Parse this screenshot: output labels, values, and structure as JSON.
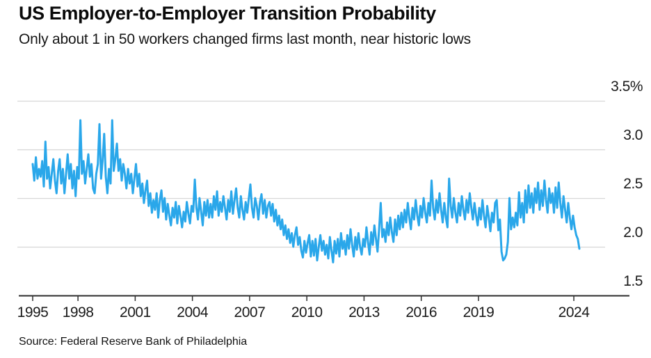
{
  "header": {
    "title": "US Employer-to-Employer Transition Probability",
    "subtitle": "Only about 1 in 50 workers changed firms last month, near historic lows"
  },
  "footer": {
    "source": "Source: Federal Reserve Bank of Philadelphia"
  },
  "chart_data": {
    "type": "line",
    "title": "US Employer-to-Employer Transition Probability",
    "subtitle": "Only about 1 in 50 workers changed firms last month, near historic lows",
    "source": "Source: Federal Reserve Bank of Philadelphia",
    "unit": "%",
    "grid": true,
    "legend": "none",
    "line_color": "#2AA7EA",
    "grid_color": "#d7d7d7",
    "axis_color": "#2e2e2e",
    "ylim": [
      1.5,
      3.5
    ],
    "y_ticks": [
      {
        "label": "3.5%",
        "value": 3.5
      },
      {
        "label": "3.0",
        "value": 3.0
      },
      {
        "label": "2.5",
        "value": 2.5
      },
      {
        "label": "2.0",
        "value": 2.0
      },
      {
        "label": "1.5",
        "value": 1.5
      }
    ],
    "x_ticks": [
      {
        "label": "1995",
        "year": 1995
      },
      {
        "label": "1998",
        "year": 1998
      },
      {
        "label": "2001",
        "year": 2001
      },
      {
        "label": "2004",
        "year": 2004
      },
      {
        "label": "2007",
        "year": 2007
      },
      {
        "label": "2010",
        "year": 2010
      },
      {
        "label": "2013",
        "year": 2013
      },
      {
        "label": "2016",
        "year": 2016
      },
      {
        "label": "2019",
        "year": 2019
      },
      {
        "label": "2024",
        "year": 2024
      }
    ],
    "series": [
      {
        "name": "Employer-to-employer transition probability",
        "frequency": "monthly",
        "start_year": 1995,
        "start_month": 8,
        "end_year": 2024,
        "end_month": 4,
        "values": [
          2.85,
          2.68,
          2.92,
          2.7,
          2.8,
          2.72,
          2.88,
          2.62,
          3.08,
          2.7,
          2.82,
          2.6,
          2.75,
          2.9,
          2.68,
          2.55,
          2.78,
          2.9,
          2.65,
          2.8,
          2.55,
          2.75,
          2.95,
          2.7,
          2.85,
          2.6,
          2.78,
          2.52,
          2.82,
          2.7,
          3.3,
          2.75,
          2.88,
          2.65,
          2.8,
          2.95,
          2.72,
          2.85,
          2.6,
          2.55,
          2.75,
          2.85,
          3.26,
          2.7,
          2.88,
          3.16,
          2.72,
          2.55,
          2.8,
          2.65,
          3.3,
          2.78,
          2.9,
          3.06,
          2.78,
          2.9,
          2.68,
          2.85,
          2.75,
          2.6,
          2.8,
          2.65,
          2.75,
          2.55,
          2.7,
          2.85,
          2.62,
          2.75,
          2.52,
          2.65,
          2.45,
          2.58,
          2.68,
          2.42,
          2.55,
          2.35,
          2.48,
          2.38,
          2.55,
          2.3,
          2.48,
          2.58,
          2.36,
          2.5,
          2.28,
          2.44,
          2.32,
          2.22,
          2.4,
          2.3,
          2.46,
          2.24,
          2.42,
          2.32,
          2.2,
          2.36,
          2.26,
          2.46,
          2.34,
          2.24,
          2.42,
          2.36,
          2.69,
          2.4,
          2.28,
          2.5,
          2.36,
          2.22,
          2.46,
          2.32,
          2.48,
          2.3,
          2.44,
          2.3,
          2.52,
          2.38,
          2.57,
          2.32,
          2.46,
          2.36,
          2.52,
          2.4,
          2.28,
          2.48,
          2.36,
          2.57,
          2.34,
          2.48,
          2.6,
          2.4,
          2.3,
          2.52,
          2.38,
          2.28,
          2.46,
          2.35,
          2.5,
          2.64,
          2.4,
          2.3,
          2.5,
          2.42,
          2.28,
          2.46,
          2.54,
          2.34,
          2.48,
          2.3,
          2.42,
          2.46,
          2.32,
          2.44,
          2.26,
          2.38,
          2.22,
          2.32,
          2.18,
          2.28,
          2.12,
          2.22,
          2.08,
          2.18,
          2.04,
          2.14,
          2.0,
          2.12,
          2.2,
          2.02,
          2.1,
          1.96,
          1.89,
          2.06,
          1.94,
          2.04,
          2.12,
          1.9,
          2.06,
          1.91,
          2.08,
          1.86,
          2.0,
          2.12,
          1.96,
          2.06,
          1.92,
          2.02,
          1.88,
          2.1,
          1.96,
          1.84,
          2.06,
          1.93,
          2.08,
          1.9,
          2.14,
          1.98,
          2.06,
          1.92,
          2.12,
          1.98,
          2.18,
          2.02,
          1.9,
          2.1,
          1.97,
          2.14,
          2.0,
          1.92,
          2.08,
          2.0,
          2.2,
          2.05,
          1.92,
          2.15,
          2.02,
          2.22,
          2.08,
          1.95,
          2.18,
          2.45,
          2.1,
          2.18,
          2.05,
          2.25,
          2.12,
          2.3,
          2.15,
          2.05,
          2.28,
          2.12,
          2.32,
          2.18,
          2.35,
          2.2,
          2.38,
          2.25,
          2.45,
          2.3,
          2.18,
          2.4,
          2.28,
          2.48,
          2.32,
          2.22,
          2.42,
          2.3,
          2.5,
          2.35,
          2.25,
          2.45,
          2.32,
          2.68,
          2.4,
          2.28,
          2.48,
          2.35,
          2.55,
          2.38,
          2.25,
          2.45,
          2.3,
          2.2,
          2.7,
          2.42,
          2.3,
          2.5,
          2.35,
          2.25,
          2.45,
          2.32,
          2.52,
          2.38,
          2.28,
          2.48,
          2.35,
          2.55,
          2.4,
          2.28,
          2.45,
          2.32,
          2.22,
          2.4,
          2.28,
          2.48,
          2.32,
          2.2,
          2.42,
          2.3,
          2.16,
          2.35,
          2.25,
          2.45,
          2.48,
          2.17,
          2.28,
          1.95,
          1.86,
          1.88,
          1.92,
          2.05,
          2.5,
          2.18,
          2.3,
          2.2,
          2.35,
          2.22,
          2.56,
          2.3,
          2.45,
          2.25,
          2.58,
          2.35,
          2.63,
          2.4,
          2.55,
          2.35,
          2.6,
          2.45,
          2.66,
          2.38,
          2.58,
          2.42,
          2.68,
          2.48,
          2.35,
          2.6,
          2.45,
          2.55,
          2.35,
          2.61,
          2.4,
          2.66,
          2.45,
          2.3,
          2.52,
          2.38,
          2.25,
          2.45,
          2.3,
          2.18,
          2.32,
          2.2,
          2.12,
          2.08,
          1.98
        ]
      }
    ]
  }
}
